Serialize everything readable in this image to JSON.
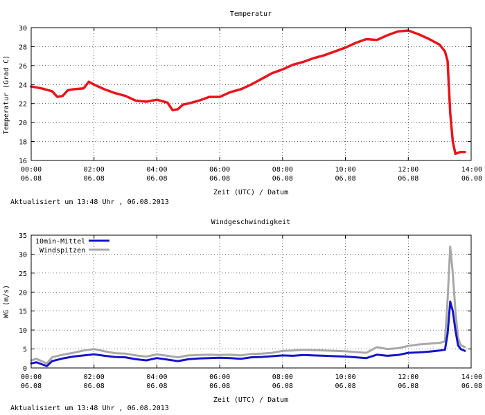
{
  "chart_data": [
    {
      "type": "line",
      "title": "Temperatur",
      "xlabel": "Zeit (UTC) / Datum",
      "ylabel": "Temperatur (Grad C)",
      "ylim": [
        16,
        30
      ],
      "yticks": [
        "16",
        "18",
        "20",
        "22",
        "24",
        "26",
        "28",
        "30"
      ],
      "xlim": [
        "00:00",
        "14:00"
      ],
      "xticks": [
        {
          "time": "00:00",
          "date": "06.08"
        },
        {
          "time": "02:00",
          "date": "06.08"
        },
        {
          "time": "04:00",
          "date": "06.08"
        },
        {
          "time": "06:00",
          "date": "06.08"
        },
        {
          "time": "08:00",
          "date": "06.08"
        },
        {
          "time": "10:00",
          "date": "06.08"
        },
        {
          "time": "12:00",
          "date": "06.08"
        },
        {
          "time": "14:00",
          "date": "06.08"
        }
      ],
      "grid": true,
      "series": [
        {
          "color": "#e8141c",
          "x": [
            "00:00",
            "00:20",
            "00:40",
            "00:50",
            "01:00",
            "01:10",
            "01:20",
            "01:40",
            "01:50",
            "02:00",
            "02:20",
            "02:40",
            "03:00",
            "03:20",
            "03:40",
            "04:00",
            "04:20",
            "04:30",
            "04:40",
            "04:50",
            "05:00",
            "05:20",
            "05:40",
            "06:00",
            "06:20",
            "06:40",
            "07:00",
            "07:20",
            "07:40",
            "08:00",
            "08:20",
            "08:40",
            "09:00",
            "09:20",
            "09:40",
            "10:00",
            "10:20",
            "10:40",
            "11:00",
            "11:20",
            "11:40",
            "12:00",
            "12:20",
            "12:40",
            "13:00",
            "13:10",
            "13:15",
            "13:20",
            "13:25",
            "13:30",
            "13:35",
            "13:40",
            "13:48"
          ],
          "values": [
            23.8,
            23.6,
            23.3,
            22.7,
            22.8,
            23.4,
            23.5,
            23.6,
            24.3,
            24.0,
            23.5,
            23.1,
            22.8,
            22.3,
            22.2,
            22.4,
            22.1,
            21.3,
            21.4,
            21.9,
            22.0,
            22.3,
            22.7,
            22.7,
            23.2,
            23.5,
            24.0,
            24.6,
            25.2,
            25.6,
            26.1,
            26.4,
            26.8,
            27.1,
            27.5,
            27.9,
            28.4,
            28.8,
            28.7,
            29.2,
            29.6,
            29.7,
            29.3,
            28.8,
            28.2,
            27.5,
            26.5,
            21.0,
            18.0,
            16.7,
            16.8,
            16.9,
            16.9
          ]
        }
      ],
      "annotation": "Aktualisiert um 13:48 Uhr , 06.08.2013"
    },
    {
      "type": "line",
      "title": "Windgeschwindigkeit",
      "xlabel": "Zeit (UTC) / Datum",
      "ylabel": "WG (m/s)",
      "ylim": [
        0,
        35
      ],
      "yticks": [
        "0",
        "5",
        "10",
        "15",
        "20",
        "25",
        "30",
        "35"
      ],
      "xlim": [
        "00:00",
        "14:00"
      ],
      "xticks": [
        {
          "time": "00:00",
          "date": "06.08"
        },
        {
          "time": "02:00",
          "date": "06.08"
        },
        {
          "time": "04:00",
          "date": "06.08"
        },
        {
          "time": "06:00",
          "date": "06.08"
        },
        {
          "time": "08:00",
          "date": "06.08"
        },
        {
          "time": "10:00",
          "date": "06.08"
        },
        {
          "time": "12:00",
          "date": "06.08"
        },
        {
          "time": "14:00",
          "date": "06.08"
        }
      ],
      "grid": true,
      "legend_position": "top-left",
      "series": [
        {
          "name": "10min-Mittel",
          "color": "#1414c8",
          "x": [
            "00:00",
            "00:10",
            "00:20",
            "00:30",
            "00:40",
            "01:00",
            "01:20",
            "01:40",
            "02:00",
            "02:20",
            "02:40",
            "03:00",
            "03:20",
            "03:40",
            "04:00",
            "04:20",
            "04:40",
            "05:00",
            "05:20",
            "05:40",
            "06:00",
            "06:20",
            "06:40",
            "07:00",
            "07:20",
            "07:40",
            "08:00",
            "08:20",
            "08:40",
            "09:00",
            "09:20",
            "09:40",
            "10:00",
            "10:20",
            "10:40",
            "11:00",
            "11:20",
            "11:40",
            "12:00",
            "12:20",
            "12:40",
            "13:00",
            "13:10",
            "13:15",
            "13:20",
            "13:25",
            "13:30",
            "13:35",
            "13:40",
            "13:48"
          ],
          "values": [
            1.2,
            1.5,
            1.0,
            0.5,
            1.8,
            2.5,
            3.0,
            3.3,
            3.6,
            3.2,
            2.9,
            2.8,
            2.3,
            2.0,
            2.6,
            2.2,
            1.8,
            2.3,
            2.5,
            2.6,
            2.7,
            2.6,
            2.4,
            2.8,
            2.9,
            3.1,
            3.3,
            3.2,
            3.4,
            3.3,
            3.2,
            3.1,
            3.0,
            2.8,
            2.6,
            3.5,
            3.2,
            3.4,
            4.0,
            4.1,
            4.3,
            4.6,
            4.8,
            9.0,
            17.5,
            15.0,
            10.0,
            6.0,
            5.0,
            4.5
          ]
        },
        {
          "name": "Windspitzen",
          "color": "#a8a8a8",
          "x": [
            "00:00",
            "00:10",
            "00:20",
            "00:30",
            "00:40",
            "01:00",
            "01:20",
            "01:40",
            "02:00",
            "02:20",
            "02:40",
            "03:00",
            "03:20",
            "03:40",
            "04:00",
            "04:20",
            "04:40",
            "05:00",
            "05:20",
            "05:40",
            "06:00",
            "06:20",
            "06:40",
            "07:00",
            "07:20",
            "07:40",
            "08:00",
            "08:20",
            "08:40",
            "09:00",
            "09:20",
            "09:40",
            "10:00",
            "10:20",
            "10:40",
            "11:00",
            "11:20",
            "11:40",
            "12:00",
            "12:20",
            "12:40",
            "13:00",
            "13:10",
            "13:15",
            "13:20",
            "13:25",
            "13:30",
            "13:35",
            "13:40",
            "13:48"
          ],
          "values": [
            2.0,
            2.4,
            1.8,
            1.2,
            2.8,
            3.5,
            4.0,
            4.6,
            5.0,
            4.4,
            3.9,
            3.8,
            3.3,
            3.0,
            3.6,
            3.2,
            2.8,
            3.3,
            3.4,
            3.5,
            3.4,
            3.5,
            3.3,
            3.7,
            3.8,
            4.0,
            4.5,
            4.6,
            4.8,
            4.7,
            4.6,
            4.5,
            4.4,
            4.2,
            4.0,
            5.5,
            5.0,
            5.2,
            5.8,
            6.2,
            6.4,
            6.6,
            7.0,
            18.0,
            32.0,
            25.0,
            15.0,
            8.0,
            6.0,
            5.5
          ]
        }
      ],
      "annotation": "Aktualisiert um 13:48 Uhr , 06.08.2013"
    }
  ]
}
